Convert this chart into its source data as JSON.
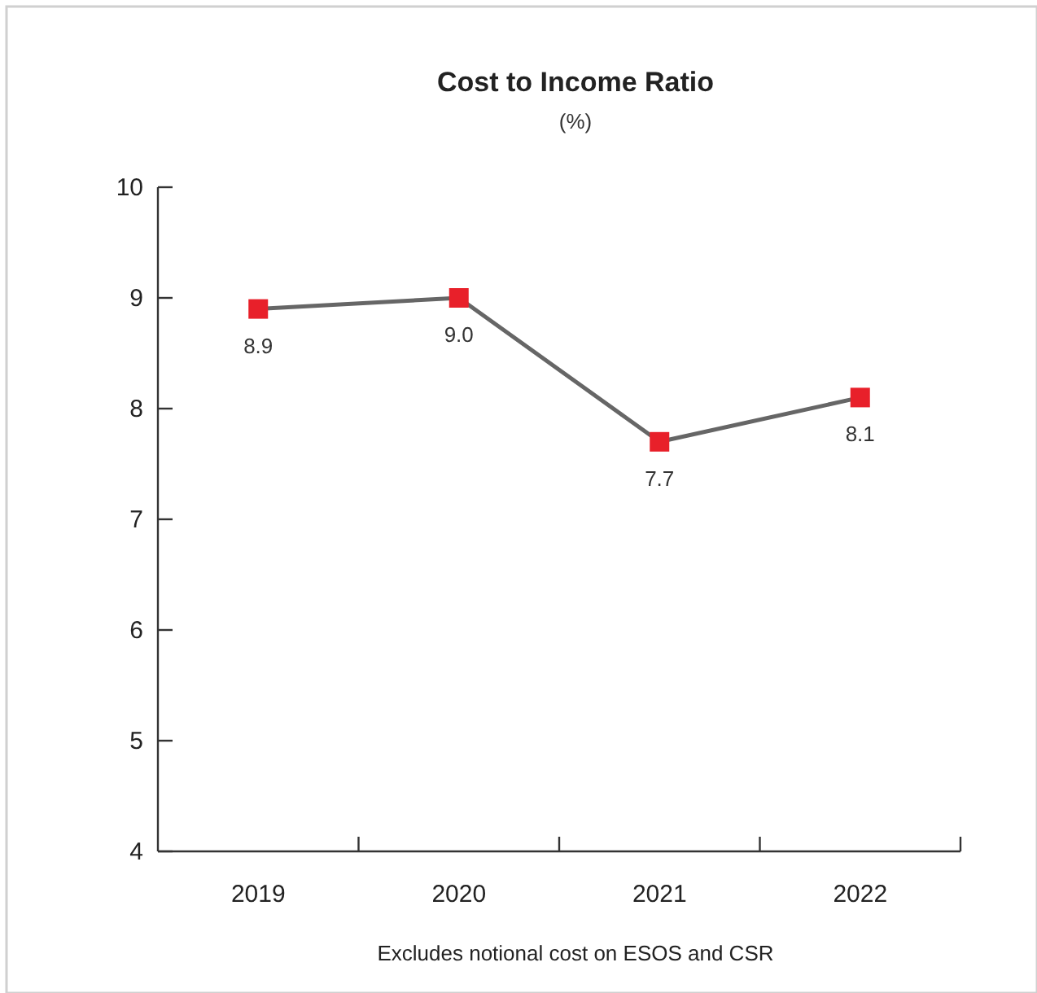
{
  "chart_data": {
    "type": "line",
    "title": "Cost to Income Ratio",
    "subtitle": "(%)",
    "categories": [
      "2019",
      "2020",
      "2021",
      "2022"
    ],
    "series": [
      {
        "color": "#666666",
        "colors": [
          "#e8202a",
          "#e8202a",
          "#e8202a",
          "#e8202a"
        ],
        "values": [
          8.9,
          9.0,
          7.7,
          8.1
        ],
        "value_labels": [
          "8.9",
          "9.0",
          "7.7",
          "8.1"
        ]
      }
    ],
    "marker": "square",
    "ylim": [
      4,
      10
    ],
    "yticks": [
      4,
      5,
      6,
      7,
      8,
      9,
      10
    ],
    "annotations": [
      "Excludes notional cost on ESOS and CSR"
    ]
  }
}
